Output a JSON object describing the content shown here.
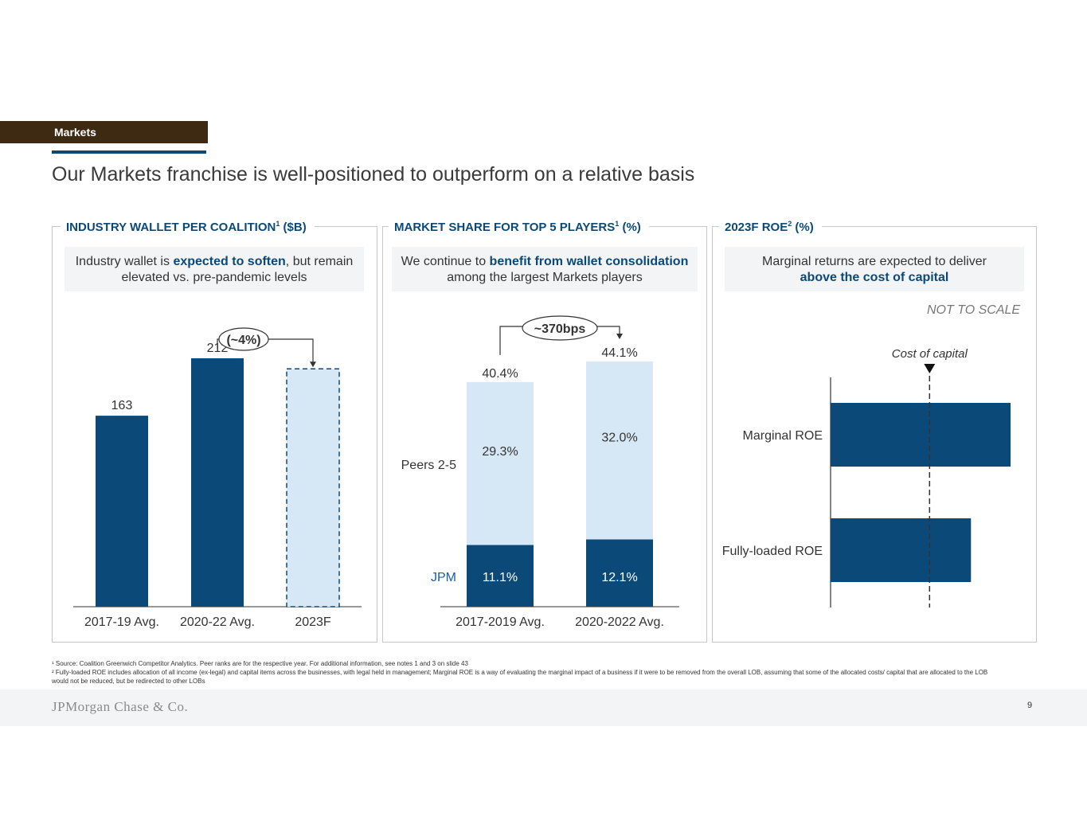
{
  "header": {
    "section_tag": "Markets",
    "title": "Our Markets franchise is well-positioned to outperform on a relative basis"
  },
  "panel1": {
    "heading": "INDUSTRY WALLET PER COALITION",
    "heading_sup": "1",
    "heading_unit": " ($B)",
    "callout": {
      "pre": "Industry wallet is ",
      "bold": "expected to soften",
      "post": ", but remain elevated vs. pre-pandemic levels"
    }
  },
  "panel2": {
    "heading": "MARKET SHARE FOR TOP 5 PLAYERS",
    "heading_sup": "1",
    "heading_unit": " (%)",
    "callout": {
      "pre": "We continue to ",
      "bold": "benefit from wallet consolidation",
      "post": " among the largest Markets players"
    }
  },
  "panel3": {
    "heading": "2023F ROE",
    "heading_sup": "2",
    "heading_unit": " (%)",
    "callout": {
      "pre": "Marginal returns are expected to deliver ",
      "bold": "above the cost of capital",
      "post": ""
    },
    "note": "NOT TO SCALE"
  },
  "chart_data": [
    {
      "type": "bar",
      "title": "INDUSTRY WALLET PER COALITION ($B)",
      "categories": [
        "2017-19 Avg.",
        "2020-22 Avg.",
        "2023F"
      ],
      "values": [
        163,
        212,
        203
      ],
      "data_labels": [
        "163",
        "212",
        ""
      ],
      "forecast_index": 2,
      "ylim": [
        0,
        212
      ],
      "annotation": "(~4%)",
      "colors": {
        "actual": "#0b4a78",
        "forecast_fill": "#d6e8f5",
        "forecast_border": "#0b4a78"
      }
    },
    {
      "type": "bar",
      "stacked": true,
      "title": "MARKET SHARE FOR TOP 5 PLAYERS (%)",
      "categories": [
        "2017-2019 Avg.",
        "2020-2022 Avg."
      ],
      "series": [
        {
          "name": "JPM",
          "values": [
            11.1,
            12.1
          ],
          "labels": [
            "11.1%",
            "12.1%"
          ],
          "color": "#0b4a78"
        },
        {
          "name": "Peers 2-5",
          "values": [
            29.3,
            32.0
          ],
          "labels": [
            "29.3%",
            "32.0%"
          ],
          "color": "#d6e8f5"
        }
      ],
      "totals": [
        "40.4%",
        "44.1%"
      ],
      "ylim": [
        0,
        44.1
      ],
      "annotation": "~370bps"
    },
    {
      "type": "bar",
      "orientation": "horizontal",
      "title": "2023F ROE (%)",
      "categories": [
        "Marginal ROE",
        "Fully-loaded ROE"
      ],
      "values": [
        1.0,
        0.78
      ],
      "value_note": "relative lengths, not to scale",
      "reference_line": {
        "label": "Cost of capital",
        "value": 0.55
      },
      "color": "#0b4a78"
    }
  ],
  "footnotes": {
    "fn1": "¹ Source: Coalition Greenwich Competitor Analytics. Peer ranks are for the respective year. For additional information, see notes 1 and 3 on slide 43",
    "fn2": "² Fully-loaded ROE includes allocation of all income (ex-legal) and capital items across the businesses, with legal held in management; Marginal ROE is a way of evaluating the marginal impact of a business if it were to be removed from the overall LOB, assuming that some of the allocated costs/ capital that are allocated to the LOB would not be reduced, but be redirected to other LOBs"
  },
  "footer": {
    "logo": "JPMorgan Chase & Co.",
    "page": "9"
  }
}
